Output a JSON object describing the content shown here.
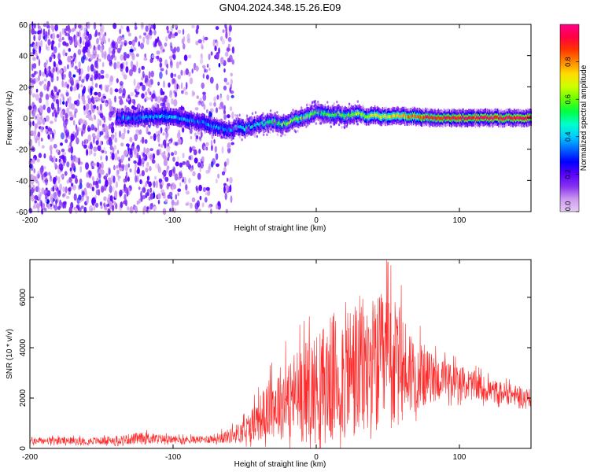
{
  "title": "GN04.2024.348.15.26.E09",
  "chart_data": [
    {
      "type": "heatmap",
      "title": "",
      "xlabel": "Height of straight line (km)",
      "ylabel": "Frequency (Hz)",
      "xlim": [
        -200,
        150
      ],
      "ylim": [
        -60,
        60
      ],
      "x_ticks": [
        -200,
        -100,
        0,
        100
      ],
      "y_ticks": [
        -60,
        -40,
        -20,
        0,
        20,
        40,
        60
      ],
      "grid": false,
      "colorbar": {
        "label": "Normalized spectral amplitude",
        "range": [
          0,
          1
        ],
        "ticks": [
          "0.0",
          "0.2",
          "0.4",
          "0.6",
          "0.8"
        ],
        "colormap": [
          "#e6ccf5",
          "#cc99ee",
          "#8833ee",
          "#5a00ff",
          "#0000ff",
          "#0066ff",
          "#00ccff",
          "#00ffcc",
          "#00ff44",
          "#66ff00",
          "#ccff00",
          "#ffdd00",
          "#ff8800",
          "#ff3300",
          "#ff0044",
          "#ff0088"
        ]
      },
      "ridge": {
        "x": [
          -140,
          -130,
          -120,
          -110,
          -100,
          -90,
          -80,
          -70,
          -60,
          -55,
          -50,
          -45,
          -40,
          -35,
          -30,
          -25,
          -20,
          -15,
          -10,
          -5,
          0,
          5,
          10,
          15,
          20,
          25,
          30,
          35,
          40,
          45,
          50,
          55,
          60,
          70,
          80,
          90,
          100,
          110,
          120,
          130,
          140,
          150
        ],
        "y": [
          0,
          0,
          0.5,
          1,
          1,
          -1,
          -3,
          -6,
          -8,
          -5,
          -7,
          -5,
          -4,
          -3,
          -2,
          -4,
          -3,
          -1,
          0,
          2,
          4,
          3,
          2,
          3,
          1,
          2,
          3,
          1,
          2,
          1,
          1,
          2,
          1,
          1,
          0,
          0,
          0,
          0,
          0,
          0,
          0,
          0
        ],
        "peak_amplitude": [
          0.3,
          0.35,
          0.35,
          0.4,
          0.4,
          0.35,
          0.35,
          0.35,
          0.35,
          0.4,
          0.45,
          0.45,
          0.45,
          0.5,
          0.55,
          0.55,
          0.6,
          0.6,
          0.6,
          0.6,
          0.55,
          0.55,
          0.55,
          0.6,
          0.6,
          0.6,
          0.6,
          0.65,
          0.7,
          0.7,
          0.7,
          0.75,
          0.75,
          0.85,
          0.9,
          0.92,
          0.95,
          0.95,
          0.95,
          0.95,
          0.95,
          0.95
        ]
      },
      "noise_region_x": [
        -200,
        -60
      ]
    },
    {
      "type": "line",
      "title": "",
      "xlabel": "Height of straight line (km)",
      "ylabel": "SNR (10 * v/v)",
      "xlim": [
        -200,
        150
      ],
      "ylim": [
        0,
        7500
      ],
      "x_ticks": [
        -200,
        -100,
        0,
        100
      ],
      "y_ticks": [
        0,
        2000,
        4000,
        6000
      ],
      "grid": false,
      "series": [
        {
          "color": "#ff2a2a",
          "envelope_x": [
            -200,
            -150,
            -120,
            -100,
            -80,
            -70,
            -60,
            -50,
            -40,
            -30,
            -20,
            -10,
            0,
            10,
            20,
            30,
            40,
            50,
            60,
            70,
            80,
            90,
            100,
            110,
            120,
            130,
            140,
            150
          ],
          "envelope_mean": [
            300,
            300,
            400,
            350,
            350,
            400,
            500,
            700,
            1200,
            1700,
            2000,
            2200,
            2400,
            2700,
            3000,
            3100,
            3200,
            3300,
            3200,
            3000,
            2800,
            2700,
            2600,
            2500,
            2300,
            2200,
            2100,
            2000
          ],
          "envelope_amplitude": [
            150,
            150,
            250,
            150,
            150,
            200,
            300,
            500,
            900,
            1300,
            1700,
            2000,
            2200,
            2600,
            2800,
            3000,
            2800,
            3000,
            2300,
            1500,
            1000,
            800,
            700,
            600,
            500,
            450,
            400,
            350
          ],
          "peak_value": 7400,
          "peak_x": 50
        }
      ]
    }
  ]
}
